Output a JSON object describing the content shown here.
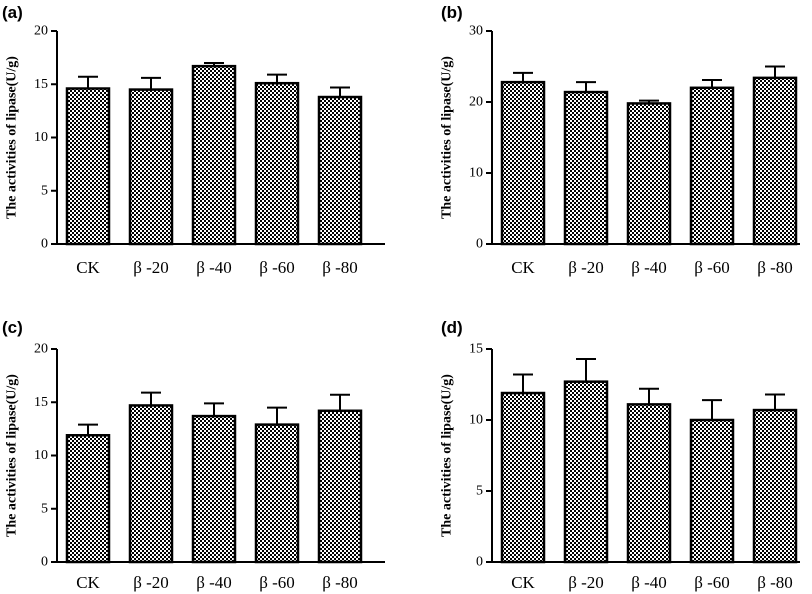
{
  "chart_data": [
    {
      "panel": "(a)",
      "type": "bar",
      "ylabel": "The activities of lipase(U/g)",
      "categories": [
        "CK",
        "β -20",
        "β -40",
        "β -60",
        "β -80"
      ],
      "values": [
        14.6,
        14.5,
        16.7,
        15.1,
        13.8
      ],
      "errors": [
        1.1,
        1.1,
        0.3,
        0.8,
        0.9
      ],
      "ylim": [
        0,
        20
      ],
      "yticks": [
        "0",
        "5",
        "10",
        "15",
        "20"
      ],
      "ytick_values": [
        0,
        5,
        10,
        15,
        20
      ],
      "grid": false,
      "bar_pattern": "checkered"
    },
    {
      "panel": "(b)",
      "type": "bar",
      "ylabel": "The activities of lipase(U/g)",
      "categories": [
        "CK",
        "β -20",
        "β -40",
        "β -60",
        "β -80"
      ],
      "values": [
        22.8,
        21.4,
        19.8,
        22.0,
        23.4
      ],
      "errors": [
        1.3,
        1.4,
        0.4,
        1.1,
        1.6
      ],
      "ylim": [
        0,
        30
      ],
      "yticks": [
        "0",
        "10",
        "20",
        "30"
      ],
      "ytick_values": [
        0,
        10,
        20,
        30
      ],
      "grid": false,
      "bar_pattern": "checkered"
    },
    {
      "panel": "(c)",
      "type": "bar",
      "ylabel": "The activities of lipase(U/g)",
      "categories": [
        "CK",
        "β -20",
        "β -40",
        "β -60",
        "β -80"
      ],
      "values": [
        11.9,
        14.7,
        13.7,
        12.9,
        14.2
      ],
      "errors": [
        1.0,
        1.2,
        1.2,
        1.6,
        1.5
      ],
      "ylim": [
        0,
        20
      ],
      "yticks": [
        "0",
        "5",
        "10",
        "15",
        "20"
      ],
      "ytick_values": [
        0,
        5,
        10,
        15,
        20
      ],
      "grid": false,
      "bar_pattern": "checkered"
    },
    {
      "panel": "(d)",
      "type": "bar",
      "ylabel": "The activities of lipase(U/g)",
      "categories": [
        "CK",
        "β -20",
        "β -40",
        "β -60",
        "β -80"
      ],
      "values": [
        11.9,
        12.7,
        11.1,
        10.0,
        10.7
      ],
      "errors": [
        1.3,
        1.6,
        1.1,
        1.4,
        1.1
      ],
      "ylim": [
        0,
        15
      ],
      "yticks": [
        "0",
        "5",
        "10",
        "15"
      ],
      "ytick_values": [
        0,
        5,
        10,
        15
      ],
      "grid": false,
      "bar_pattern": "checkered"
    }
  ]
}
